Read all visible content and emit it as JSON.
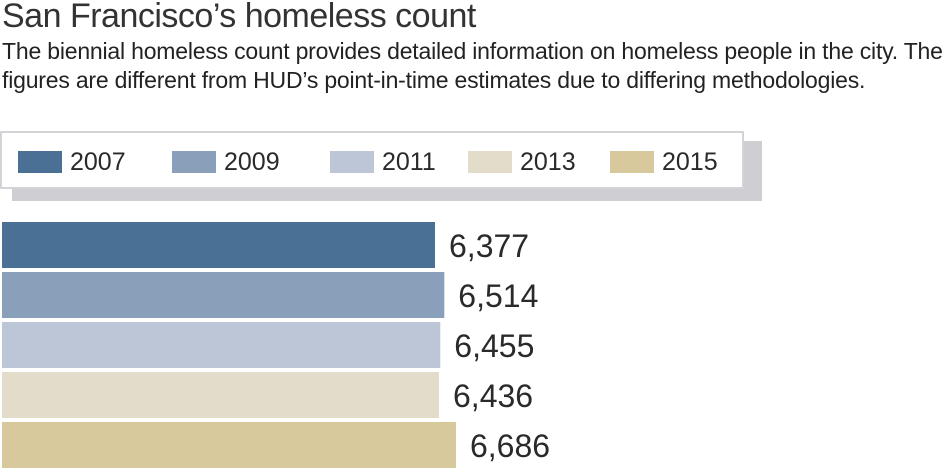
{
  "header": {
    "title": "San Francisco’s homeless count",
    "subtitle": "The biennial homeless count provides detailed information on homeless people in the city. The figures are different from HUD’s point-in-time estimates due to differing methodologies."
  },
  "colors": {
    "2007": "#4a7095",
    "2009": "#8a9fba",
    "2011": "#bcc6d7",
    "2013": "#e4dccb",
    "2015": "#d8c99c"
  },
  "legend": [
    {
      "label": "2007",
      "color": "#4a7095"
    },
    {
      "label": "2009",
      "color": "#8a9fba"
    },
    {
      "label": "2011",
      "color": "#bcc6d7"
    },
    {
      "label": "2013",
      "color": "#e4dccb"
    },
    {
      "label": "2015",
      "color": "#d8c99c"
    }
  ],
  "chart_data": {
    "type": "bar",
    "orientation": "horizontal",
    "title": "San Francisco’s homeless count",
    "categories": [
      "2007",
      "2009",
      "2011",
      "2013",
      "2015"
    ],
    "values": [
      6377,
      6514,
      6455,
      6436,
      6686
    ],
    "labels": [
      "6,377",
      "6,514",
      "6,455",
      "6,436",
      "6,686"
    ],
    "xlabel": "",
    "ylabel": "",
    "grid": false,
    "legend_position": "top"
  }
}
